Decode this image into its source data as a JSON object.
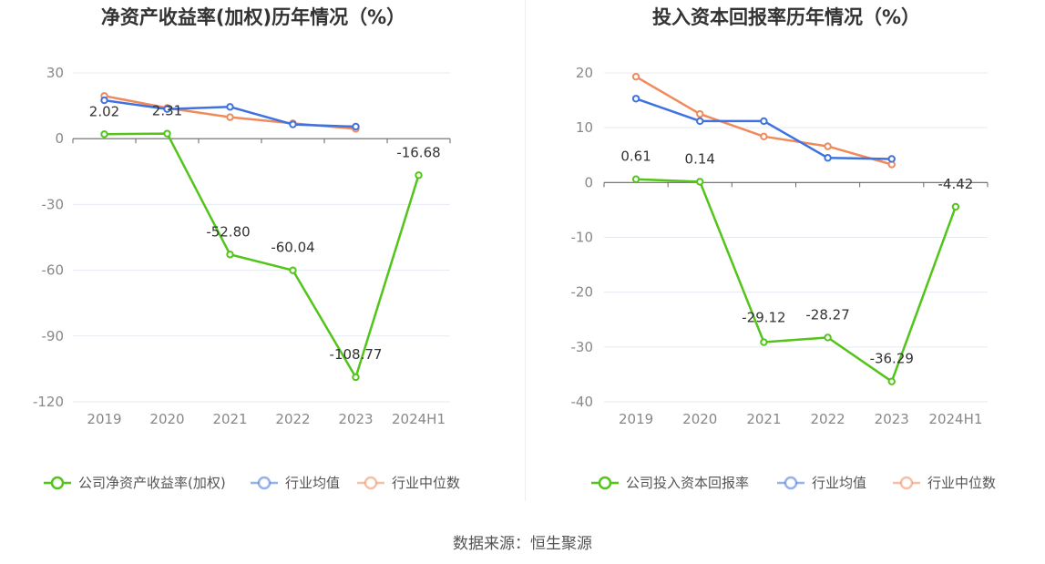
{
  "source": "数据来源：恒生聚源",
  "chart_data": [
    {
      "type": "line",
      "title": "净资产收益率(加权)历年情况（%）",
      "categories": [
        "2019",
        "2020",
        "2021",
        "2022",
        "2023",
        "2024H1"
      ],
      "ylim": [
        -120,
        30
      ],
      "yticks": [
        30,
        0,
        -30,
        -60,
        -90,
        -120
      ],
      "ytick_labels": [
        "30",
        "0",
        "-30",
        "-60",
        "-90",
        "-120"
      ],
      "grid": true,
      "legend_position": "bottom",
      "series": [
        {
          "name": "公司净资产收益率(加权)",
          "color": "#52c41a",
          "values": [
            2.02,
            2.31,
            -52.8,
            -60.04,
            -108.77,
            -16.68
          ],
          "labels": [
            "2.02",
            "2.31",
            "-52.80",
            "-60.04",
            "-108.77",
            "-16.68"
          ]
        },
        {
          "name": "行业均值",
          "color": "#3e72e0",
          "values": [
            17.5,
            13.5,
            14.5,
            6.5,
            5.5,
            null
          ]
        },
        {
          "name": "行业中位数",
          "color": "#f08a5d",
          "values": [
            19.5,
            14.0,
            9.8,
            7.0,
            4.5,
            null
          ]
        }
      ]
    },
    {
      "type": "line",
      "title": "投入资本回报率历年情况（%）",
      "categories": [
        "2019",
        "2020",
        "2021",
        "2022",
        "2023",
        "2024H1"
      ],
      "ylim": [
        -40,
        20
      ],
      "yticks": [
        20,
        10,
        0,
        -10,
        -20,
        -30,
        -40
      ],
      "ytick_labels": [
        "20",
        "10",
        "0",
        "-10",
        "-20",
        "-30",
        "-40"
      ],
      "grid": true,
      "legend_position": "bottom",
      "series": [
        {
          "name": "公司投入资本回报率",
          "color": "#52c41a",
          "values": [
            0.61,
            0.14,
            -29.12,
            -28.27,
            -36.29,
            -4.42
          ],
          "labels": [
            "0.61",
            "0.14",
            "-29.12",
            "-28.27",
            "-36.29",
            "-4.42"
          ]
        },
        {
          "name": "行业均值",
          "color": "#3e72e0",
          "values": [
            15.3,
            11.2,
            11.2,
            4.5,
            4.3,
            null
          ]
        },
        {
          "name": "行业中位数",
          "color": "#f08a5d",
          "values": [
            19.3,
            12.5,
            8.4,
            6.6,
            3.3,
            null
          ]
        }
      ]
    }
  ]
}
